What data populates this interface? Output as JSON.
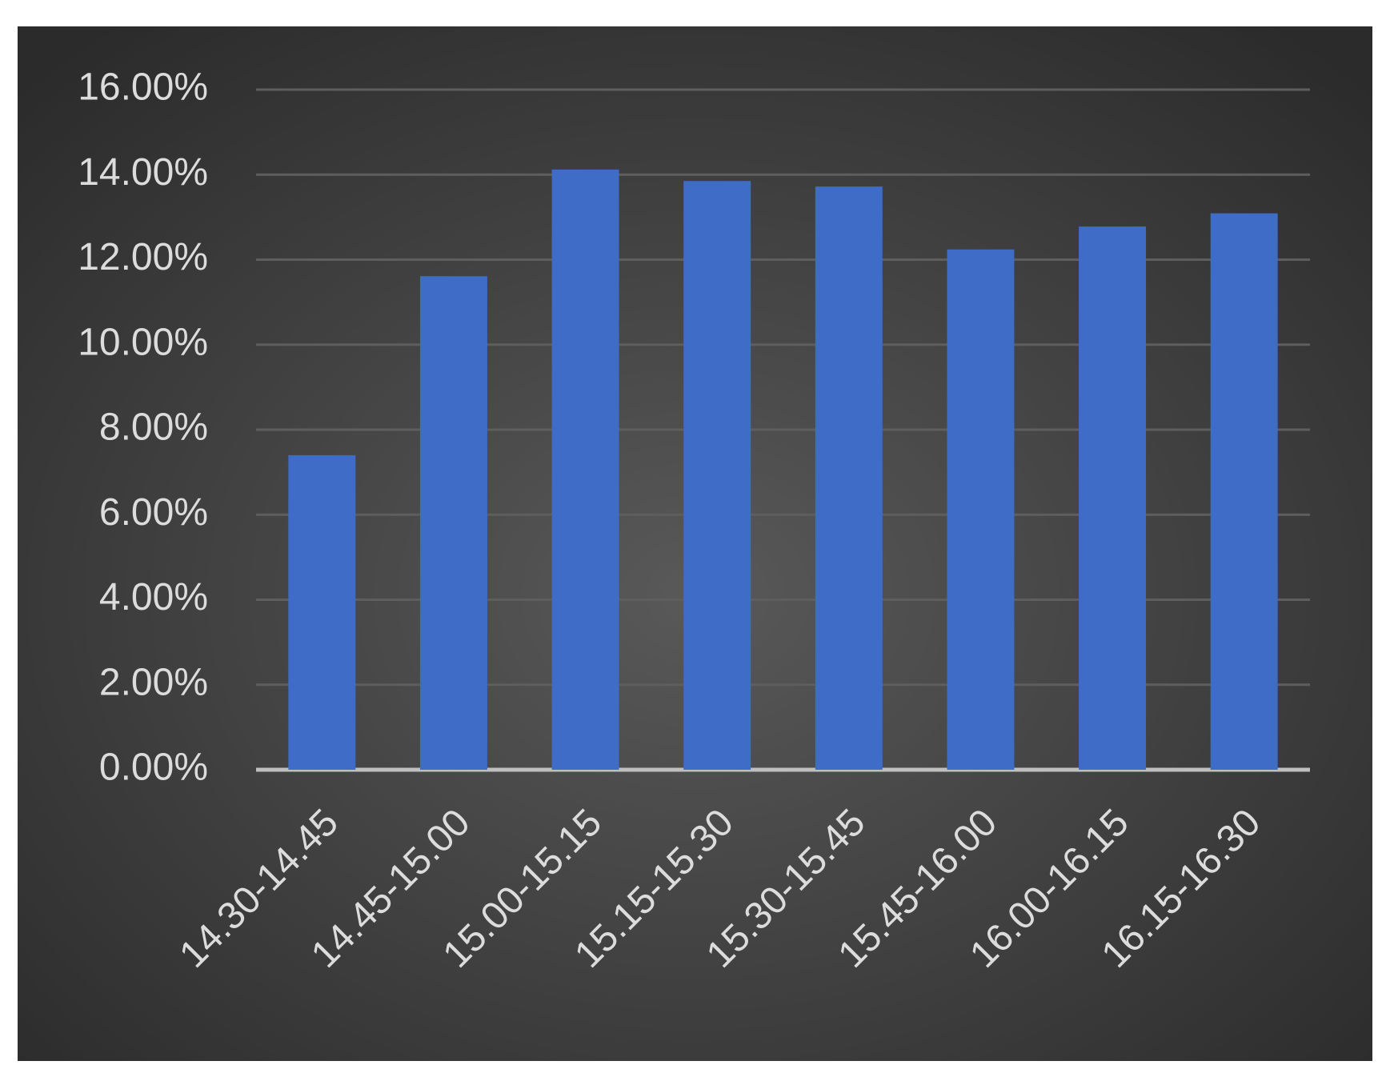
{
  "chart_data": {
    "type": "bar",
    "categories": [
      "14.30-14.45",
      "14.45-15.00",
      "15.00-15.15",
      "15.15-15.30",
      "15.30-15.45",
      "15.45-16.00",
      "16.00-16.15",
      "16.15-16.30"
    ],
    "values": [
      7.4,
      11.61,
      14.12,
      13.85,
      13.72,
      12.24,
      12.78,
      13.09
    ],
    "color": "#3f6cc6",
    "ylim": [
      0,
      16
    ],
    "yticks": [
      {
        "value": 0,
        "label": "0.00%"
      },
      {
        "value": 2,
        "label": "2.00%"
      },
      {
        "value": 4,
        "label": "4.00%"
      },
      {
        "value": 6,
        "label": "6.00%"
      },
      {
        "value": 8,
        "label": "8.00%"
      },
      {
        "value": 10,
        "label": "10.00%"
      },
      {
        "value": 12,
        "label": "12.00%"
      },
      {
        "value": 14,
        "label": "14.00%"
      },
      {
        "value": 16,
        "label": "16.00%"
      }
    ],
    "grid": true
  }
}
